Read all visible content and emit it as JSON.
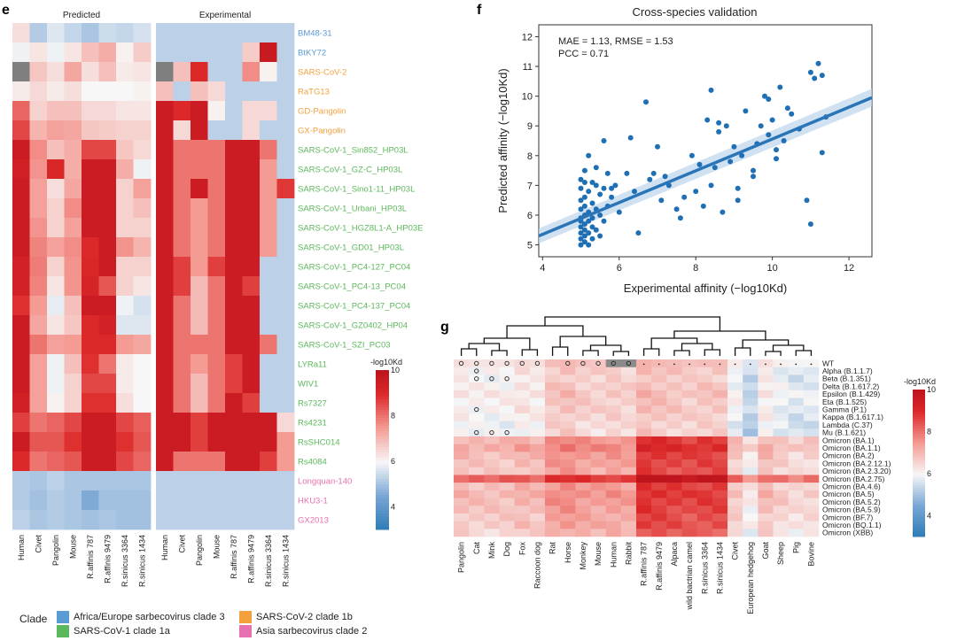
{
  "panels": {
    "e": {
      "label": "e",
      "heatmaps": [
        {
          "title": "Predicted"
        },
        {
          "title": "Experimental"
        }
      ],
      "columns": [
        "Human",
        "Civet",
        "Pangolin",
        "Mouse",
        "R.affinis 787",
        "R.affinis 9479",
        "R.sinicus 3364",
        "R.sinicus 1434"
      ],
      "rows": [
        {
          "name": "BM48-31",
          "clade": 0
        },
        {
          "name": "BtKY72",
          "clade": 0
        },
        {
          "name": "SARS-CoV-2",
          "clade": 1
        },
        {
          "name": "RaTG13",
          "clade": 1
        },
        {
          "name": "GD-Pangolin",
          "clade": 1
        },
        {
          "name": "GX-Pangolin",
          "clade": 1
        },
        {
          "name": "SARS-CoV-1_Sin852_HP03L",
          "clade": 2
        },
        {
          "name": "SARS-CoV-1_GZ-C_HP03L",
          "clade": 2
        },
        {
          "name": "SARS-CoV-1_Sino1-11_HP03L",
          "clade": 2
        },
        {
          "name": "SARS-CoV-1_Urbani_HP03L",
          "clade": 2
        },
        {
          "name": "SARS-CoV-1_HGZ8L1-A_HP03E",
          "clade": 2
        },
        {
          "name": "SARS-CoV-1_GD01_HP03L",
          "clade": 2
        },
        {
          "name": "SARS-CoV-1_PC4-127_PC04",
          "clade": 2
        },
        {
          "name": "SARS-CoV-1_PC4-13_PC04",
          "clade": 2
        },
        {
          "name": "SARS-CoV-1_PC4-137_PC04",
          "clade": 2
        },
        {
          "name": "SARS-CoV-1_GZ0402_HP04",
          "clade": 2
        },
        {
          "name": "SARS-CoV-1_SZI_PC03",
          "clade": 2
        },
        {
          "name": "LYRa11",
          "clade": 2
        },
        {
          "name": "WIV1",
          "clade": 2
        },
        {
          "name": "Rs7327",
          "clade": 2
        },
        {
          "name": "Rs4231",
          "clade": 2
        },
        {
          "name": "RsSHC014",
          "clade": 2
        },
        {
          "name": "Rs4084",
          "clade": 2
        },
        {
          "name": "Longquan-140",
          "clade": 3
        },
        {
          "name": "HKU3-1",
          "clade": 3
        },
        {
          "name": "GX2013",
          "clade": 3
        }
      ],
      "colorbar": {
        "title": "-log10Kd",
        "ticks": [
          10,
          8,
          6,
          4
        ],
        "range": [
          3,
          10
        ]
      },
      "legend": {
        "title": "Clade",
        "items": [
          {
            "label": "Africa/Europe sarbecovirus clade 3",
            "color": "#5b9bd5"
          },
          {
            "label": "SARS-CoV-2 clade 1b",
            "color": "#f4a13d"
          },
          {
            "label": "SARS-CoV-1 clade 1a",
            "color": "#5cb85c"
          },
          {
            "label": "Asia sarbecovirus clade 2",
            "color": "#e770b0"
          }
        ]
      },
      "note_grey_cells": "missing data shown grey"
    },
    "f": {
      "label": "f"
    },
    "g": {
      "label": "g"
    }
  },
  "chart_data": [
    {
      "type": "heatmap",
      "panel": "e",
      "title": "Predicted",
      "x": [
        "Human",
        "Civet",
        "Pangolin",
        "Mouse",
        "R.affinis 787",
        "R.affinis 9479",
        "R.sinicus 3364",
        "R.sinicus 1434"
      ],
      "values": [
        [
          6.4,
          5.2,
          5.7,
          5.4,
          5.1,
          5.5,
          5.4,
          5.6
        ],
        [
          5.9,
          6.3,
          5.9,
          6.3,
          6.9,
          7.2,
          6.1,
          6.7
        ],
        [
          null,
          6.8,
          6.4,
          7.3,
          6.4,
          6.9,
          6.2,
          6.3
        ],
        [
          6.2,
          6.5,
          6.2,
          6.4,
          6.0,
          6.0,
          6.0,
          6.1
        ],
        [
          8.2,
          6.6,
          6.9,
          6.9,
          6.5,
          6.5,
          6.3,
          6.3
        ],
        [
          8.6,
          7.1,
          7.4,
          7.3,
          6.8,
          6.7,
          6.6,
          6.6
        ],
        [
          9.6,
          7.7,
          6.9,
          7.2,
          8.6,
          8.6,
          6.8,
          6.5
        ],
        [
          9.4,
          7.6,
          9.1,
          7.2,
          9.6,
          9.6,
          7.2,
          5.9
        ],
        [
          9.6,
          7.4,
          6.4,
          7.3,
          9.6,
          9.6,
          6.6,
          7.4
        ],
        [
          9.6,
          7.4,
          6.6,
          7.7,
          9.6,
          9.6,
          6.6,
          6.9
        ],
        [
          9.6,
          7.6,
          6.6,
          7.4,
          9.6,
          9.6,
          6.6,
          6.6
        ],
        [
          9.6,
          7.8,
          7.4,
          7.7,
          9.0,
          9.6,
          7.6,
          7.1
        ],
        [
          9.3,
          7.9,
          6.6,
          7.6,
          9.1,
          9.6,
          6.6,
          6.6
        ],
        [
          9.3,
          7.8,
          6.3,
          7.6,
          9.2,
          8.4,
          6.6,
          6.3
        ],
        [
          8.9,
          7.5,
          5.8,
          6.9,
          9.6,
          9.6,
          5.9,
          5.6
        ],
        [
          9.6,
          7.3,
          6.3,
          6.8,
          9.0,
          9.3,
          5.7,
          5.7
        ],
        [
          9.6,
          8.0,
          7.4,
          7.5,
          9.0,
          9.0,
          7.5,
          7.3
        ],
        [
          9.6,
          7.4,
          5.9,
          6.9,
          8.9,
          8.0,
          6.2,
          6.0
        ],
        [
          9.6,
          7.4,
          5.9,
          6.6,
          8.6,
          8.6,
          6.2,
          6.0
        ],
        [
          9.4,
          7.4,
          6.1,
          6.6,
          8.9,
          8.9,
          6.4,
          6.0
        ],
        [
          8.7,
          8.0,
          8.2,
          8.6,
          9.6,
          9.6,
          8.6,
          8.3
        ],
        [
          9.6,
          8.4,
          8.4,
          8.9,
          9.6,
          9.6,
          8.9,
          8.4
        ],
        [
          9.0,
          8.0,
          8.2,
          8.4,
          9.6,
          9.6,
          8.6,
          8.2
        ],
        [
          5.2,
          5.1,
          5.3,
          5.1,
          5.1,
          5.1,
          5.1,
          5.1
        ],
        [
          5.2,
          5.0,
          5.2,
          5.1,
          4.6,
          5.0,
          5.0,
          5.0
        ],
        [
          5.3,
          5.1,
          5.2,
          5.1,
          5.0,
          5.1,
          5.0,
          5.0
        ]
      ]
    },
    {
      "type": "heatmap",
      "panel": "e",
      "title": "Experimental",
      "x": [
        "Human",
        "Civet",
        "Pangolin",
        "Mouse",
        "R.affinis 787",
        "R.affinis 9479",
        "R.sinicus 3364",
        "R.sinicus 1434"
      ],
      "values": [
        [
          5.3,
          5.3,
          5.3,
          5.3,
          5.3,
          5.3,
          5.3,
          5.3
        ],
        [
          5.3,
          5.3,
          5.3,
          5.3,
          5.3,
          6.7,
          9.7,
          5.3
        ],
        [
          null,
          6.9,
          9.0,
          5.3,
          5.3,
          7.7,
          6.1,
          5.3
        ],
        [
          6.9,
          5.3,
          6.9,
          6.5,
          5.3,
          5.3,
          5.3,
          5.3
        ],
        [
          9.6,
          9.0,
          9.6,
          6.1,
          5.3,
          6.5,
          6.5,
          5.3
        ],
        [
          9.6,
          6.5,
          9.6,
          5.3,
          5.3,
          6.5,
          5.3,
          5.3
        ],
        [
          9.6,
          8.0,
          8.0,
          8.0,
          9.6,
          9.6,
          8.0,
          5.3
        ],
        [
          9.6,
          8.0,
          8.0,
          8.0,
          9.6,
          9.6,
          7.5,
          5.3
        ],
        [
          9.6,
          8.0,
          9.6,
          8.0,
          9.6,
          9.6,
          7.5,
          8.8
        ],
        [
          9.6,
          8.0,
          7.5,
          8.0,
          9.6,
          9.6,
          7.5,
          5.3
        ],
        [
          9.6,
          8.0,
          7.5,
          8.0,
          9.6,
          9.6,
          7.5,
          5.3
        ],
        [
          9.6,
          8.0,
          7.5,
          8.0,
          9.6,
          9.6,
          7.5,
          5.3
        ],
        [
          9.6,
          8.7,
          7.5,
          8.7,
          9.6,
          9.6,
          5.3,
          5.3
        ],
        [
          9.6,
          8.7,
          7.0,
          8.0,
          9.6,
          8.7,
          5.3,
          5.3
        ],
        [
          9.6,
          8.0,
          7.0,
          8.0,
          9.6,
          9.6,
          5.3,
          5.3
        ],
        [
          9.6,
          8.0,
          7.0,
          8.0,
          9.6,
          9.6,
          5.3,
          5.3
        ],
        [
          9.6,
          8.0,
          8.0,
          8.0,
          9.6,
          9.6,
          8.0,
          5.3
        ],
        [
          9.6,
          8.0,
          7.5,
          8.0,
          8.7,
          9.6,
          5.3,
          5.3
        ],
        [
          9.6,
          8.0,
          7.0,
          8.0,
          8.7,
          9.6,
          5.3,
          5.3
        ],
        [
          9.6,
          8.0,
          7.0,
          8.0,
          9.6,
          8.7,
          5.3,
          5.3
        ],
        [
          9.6,
          9.6,
          8.7,
          9.6,
          9.6,
          9.6,
          9.6,
          6.5
        ],
        [
          9.6,
          9.6,
          8.7,
          9.6,
          9.6,
          9.6,
          9.6,
          7.5
        ],
        [
          9.6,
          8.0,
          8.0,
          8.0,
          9.6,
          9.6,
          8.7,
          7.5
        ],
        [
          5.3,
          5.3,
          5.3,
          5.3,
          5.3,
          5.3,
          5.3,
          5.3
        ],
        [
          5.3,
          5.3,
          5.3,
          5.3,
          5.3,
          5.3,
          5.3,
          5.3
        ],
        [
          5.3,
          5.3,
          5.3,
          5.3,
          5.3,
          5.3,
          5.3,
          5.3
        ]
      ]
    },
    {
      "type": "scatter",
      "panel": "f",
      "title": "Cross-species validation",
      "annotation": [
        "MAE = 1.13, RMSE = 1.53",
        "PCC = 0.71"
      ],
      "xlabel": "Experimental affinity (−log10Kd)",
      "ylabel": "Predicted affinity (−log10Kd)",
      "xlim": [
        3.9,
        12.6
      ],
      "ylim": [
        4.6,
        12.4
      ],
      "xticks": [
        4,
        6,
        8,
        10,
        12
      ],
      "yticks": [
        5,
        6,
        7,
        8,
        9,
        10,
        11,
        12
      ],
      "fit_line": {
        "x": [
          3.9,
          12.6
        ],
        "y": [
          5.3,
          9.95
        ]
      },
      "points_x": [
        5.0,
        5.0,
        5.0,
        5.0,
        5.0,
        5.0,
        5.0,
        5.0,
        5.0,
        5.0,
        5.1,
        5.1,
        5.1,
        5.1,
        5.1,
        5.1,
        5.1,
        5.1,
        5.2,
        5.2,
        5.2,
        5.2,
        5.2,
        5.2,
        5.3,
        5.3,
        5.3,
        5.3,
        5.3,
        5.4,
        5.4,
        5.4,
        5.5,
        5.5,
        5.5,
        5.6,
        5.6,
        5.7,
        5.7,
        5.8,
        5.9,
        6.0,
        6.2,
        6.3,
        6.5,
        6.7,
        6.8,
        7.0,
        7.1,
        7.3,
        7.5,
        7.6,
        7.9,
        8.0,
        8.2,
        8.3,
        8.4,
        8.5,
        8.6,
        8.7,
        8.8,
        8.9,
        9.0,
        9.1,
        9.2,
        9.3,
        9.5,
        9.6,
        9.7,
        9.8,
        9.9,
        10.0,
        10.1,
        10.2,
        10.3,
        10.4,
        10.7,
        10.9,
        11.0,
        11.1,
        11.2,
        11.3,
        11.4,
        5.1,
        5.4,
        5.6,
        5.8,
        6.4,
        6.9,
        7.2,
        7.7,
        8.1,
        8.4,
        8.6,
        9.1,
        9.5,
        9.9,
        10.1,
        10.5,
        11.0,
        11.3
      ],
      "points_y": [
        5.0,
        5.2,
        5.4,
        5.6,
        5.9,
        6.2,
        6.5,
        6.9,
        7.2,
        5.8,
        5.1,
        5.3,
        5.5,
        5.7,
        6.0,
        6.3,
        6.6,
        7.5,
        5.0,
        5.4,
        5.8,
        6.1,
        6.8,
        8.0,
        5.2,
        5.6,
        5.9,
        6.4,
        7.1,
        5.5,
        6.2,
        7.0,
        5.3,
        6.0,
        6.7,
        5.8,
        6.9,
        6.3,
        7.4,
        6.6,
        7.0,
        6.1,
        7.4,
        8.6,
        5.4,
        9.8,
        7.2,
        8.3,
        6.5,
        7.0,
        6.2,
        5.9,
        8.0,
        6.8,
        6.3,
        9.2,
        10.2,
        7.6,
        8.8,
        6.1,
        9.0,
        7.8,
        8.3,
        6.5,
        8.0,
        9.5,
        7.3,
        8.4,
        9.0,
        10.0,
        8.7,
        9.2,
        7.9,
        10.3,
        8.5,
        9.6,
        8.9,
        6.5,
        5.7,
        10.6,
        11.1,
        10.7,
        9.3,
        7.1,
        7.6,
        8.5,
        6.9,
        6.8,
        7.4,
        7.3,
        6.6,
        7.7,
        7.0,
        9.1,
        6.9,
        7.5,
        9.9,
        8.2,
        9.4,
        10.8,
        8.1
      ]
    },
    {
      "type": "heatmap",
      "panel": "g",
      "x": [
        "Pangolin",
        "Cat",
        "Mink",
        "Dog",
        "Fox",
        "Raccoon dog",
        "Rat",
        "Horse",
        "Monkey",
        "Mouse",
        "Human",
        "Rabbit",
        "R.affinis 787",
        "R.affinis 9479",
        "Alpaca",
        "wild bactrian camel",
        "R.sinicus 3364",
        "R.sinicus 1434",
        "Civet",
        "European hedgehog",
        "Goat",
        "Sheep",
        "Pig",
        "Bovine"
      ],
      "y": [
        "WT",
        "Alpha (B.1.1.7)",
        "Beta (B.1.351)",
        "Delta (B.1.617.2)",
        "Epsilon (B.1.429)",
        "Eta (B.1.525)",
        "Gamma (P.1)",
        "Kappa (B.1.617.1)",
        "Lambda (C.37)",
        "Mu (B.1.621)",
        "Omicron (BA.1)",
        "Omicron (BA.1.1)",
        "Omicron (BA.2)",
        "Omicron (BA.2.12.1)",
        "Omicron (BA.2.3.20)",
        "Omicron (BA.2.75)",
        "Omicron (BA.4.6)",
        "Omicron (BA.5)",
        "Omicron (BA.5.2)",
        "Omicron (BA.5.9)",
        "Omicron (BF.7)",
        "Omicron (BQ.1.1)",
        "Omicron (XBB)"
      ],
      "colorbar": {
        "title": "-log10Kd",
        "ticks": [
          10,
          8,
          6,
          4
        ],
        "range": [
          3,
          10
        ]
      },
      "row_base": [
        6.6,
        6.2,
        6.1,
        6.2,
        6.3,
        6.2,
        6.2,
        6.1,
        6.0,
        6.0,
        7.1,
        7.3,
        7.0,
        6.9,
        6.8,
        7.7,
        7.0,
        7.1,
        7.0,
        6.9,
        6.8,
        6.8,
        6.6
      ],
      "col_offset": [
        0.0,
        -0.1,
        -0.1,
        -0.1,
        0.1,
        0.0,
        0.6,
        0.7,
        0.5,
        0.4,
        0.5,
        0.4,
        0.8,
        0.7,
        0.6,
        0.5,
        0.6,
        0.6,
        -0.2,
        -0.8,
        0.0,
        -0.3,
        -0.5,
        -0.4
      ],
      "markers": "o = significant, · = non-significant"
    }
  ]
}
